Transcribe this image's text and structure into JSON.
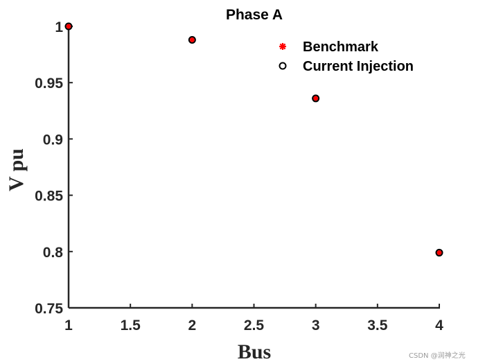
{
  "chart_data": {
    "type": "scatter",
    "title": "Phase A",
    "xlabel": "Bus",
    "ylabel": "V pu",
    "xlim": [
      1,
      4
    ],
    "ylim": [
      0.75,
      1.0
    ],
    "xticks": [
      1,
      1.5,
      2,
      2.5,
      3,
      3.5,
      4
    ],
    "xtick_labels": [
      "1",
      "1.5",
      "2",
      "2.5",
      "3",
      "3.5",
      "4"
    ],
    "yticks": [
      0.75,
      0.8,
      0.85,
      0.9,
      0.95,
      1.0
    ],
    "ytick_labels": [
      "0.75",
      "0.8",
      "0.85",
      "0.9",
      "0.95",
      "1"
    ],
    "grid": false,
    "legend_position": "top-right",
    "series": [
      {
        "name": "Benchmark",
        "marker": "asterisk",
        "color": "#ff0000",
        "x": [
          1,
          2,
          3,
          4
        ],
        "y": [
          1.0,
          0.988,
          0.936,
          0.799
        ]
      },
      {
        "name": "Current Injection",
        "marker": "circle",
        "color": "#000000",
        "x": [
          1,
          2,
          3,
          4
        ],
        "y": [
          1.0,
          0.988,
          0.936,
          0.799
        ]
      }
    ]
  },
  "watermark": "CSDN @润神之光"
}
